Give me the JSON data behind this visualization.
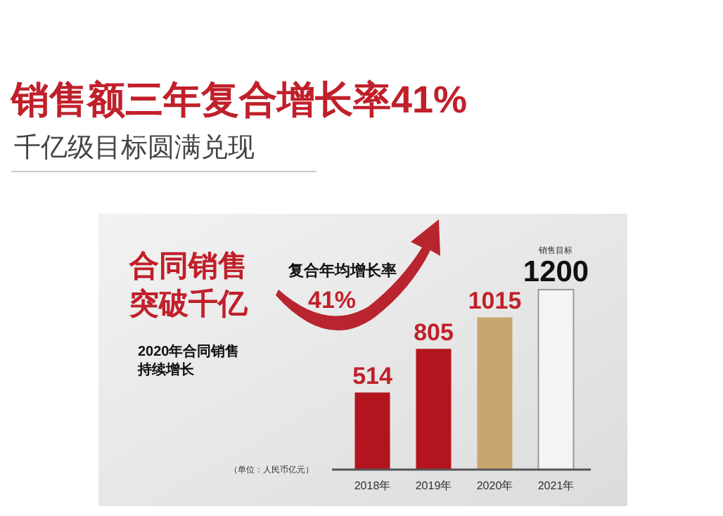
{
  "chart_data": {
    "type": "bar",
    "title": "销售额三年复合增长率41%",
    "subtitle": "千亿级目标圆满兑现",
    "categories": [
      "2018年",
      "2019年",
      "2020年",
      "2021年"
    ],
    "values": [
      514,
      805,
      1015,
      1200
    ],
    "colors": [
      "#b3141e",
      "#b3141e",
      "#c9a56e",
      "#f4f4f4"
    ],
    "data_labels": true,
    "annotations": [
      "合同销售",
      "突破千亿",
      "2020年合同销售",
      "持续增长",
      "复合年均增长率",
      "41%",
      "（单位：人民币亿元）",
      "销售目标"
    ]
  }
}
